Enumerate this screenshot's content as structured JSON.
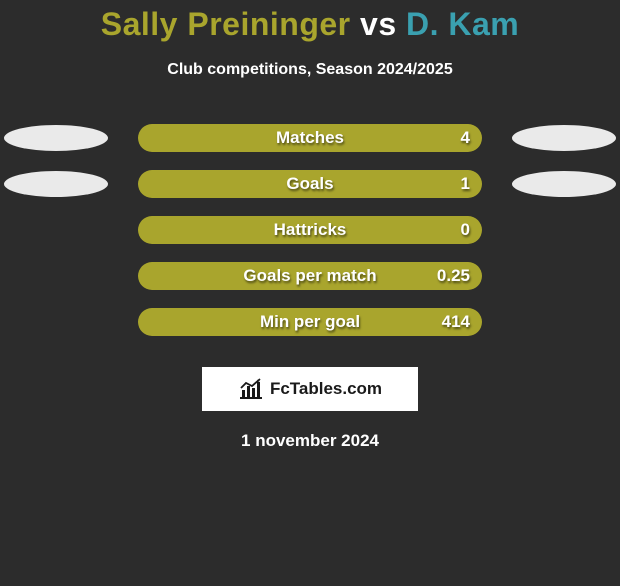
{
  "title": {
    "player1": "Sally Preininger",
    "vs": " vs ",
    "player2": "D. Kam",
    "fontsize": 32,
    "color_player1": "#a9a52d",
    "color_vs": "#ffffff",
    "color_player2": "#3aa0b0"
  },
  "subtitle": {
    "text": "Club competitions, Season 2024/2025",
    "fontsize": 16
  },
  "ellipse_colors": {
    "left": "#eaeaea",
    "right": "#eaeaea"
  },
  "bar_style": {
    "outer_bg": "#6f6b21",
    "fill_bg": "#a9a52d",
    "label_fontsize": 17,
    "value_fontsize": 17
  },
  "rows": [
    {
      "label": "Matches",
      "value": "4",
      "fill_pct": 100,
      "show_ellipses": true
    },
    {
      "label": "Goals",
      "value": "1",
      "fill_pct": 100,
      "show_ellipses": true
    },
    {
      "label": "Hattricks",
      "value": "0",
      "fill_pct": 100,
      "show_ellipses": false
    },
    {
      "label": "Goals per match",
      "value": "0.25",
      "fill_pct": 100,
      "show_ellipses": false
    },
    {
      "label": "Min per goal",
      "value": "414",
      "fill_pct": 100,
      "show_ellipses": false
    }
  ],
  "logo": {
    "text": "FcTables.com",
    "fontsize": 17,
    "icon_color": "#1a1a1a"
  },
  "date": {
    "text": "1 november 2024",
    "fontsize": 17
  },
  "background_color": "#2c2c2c"
}
